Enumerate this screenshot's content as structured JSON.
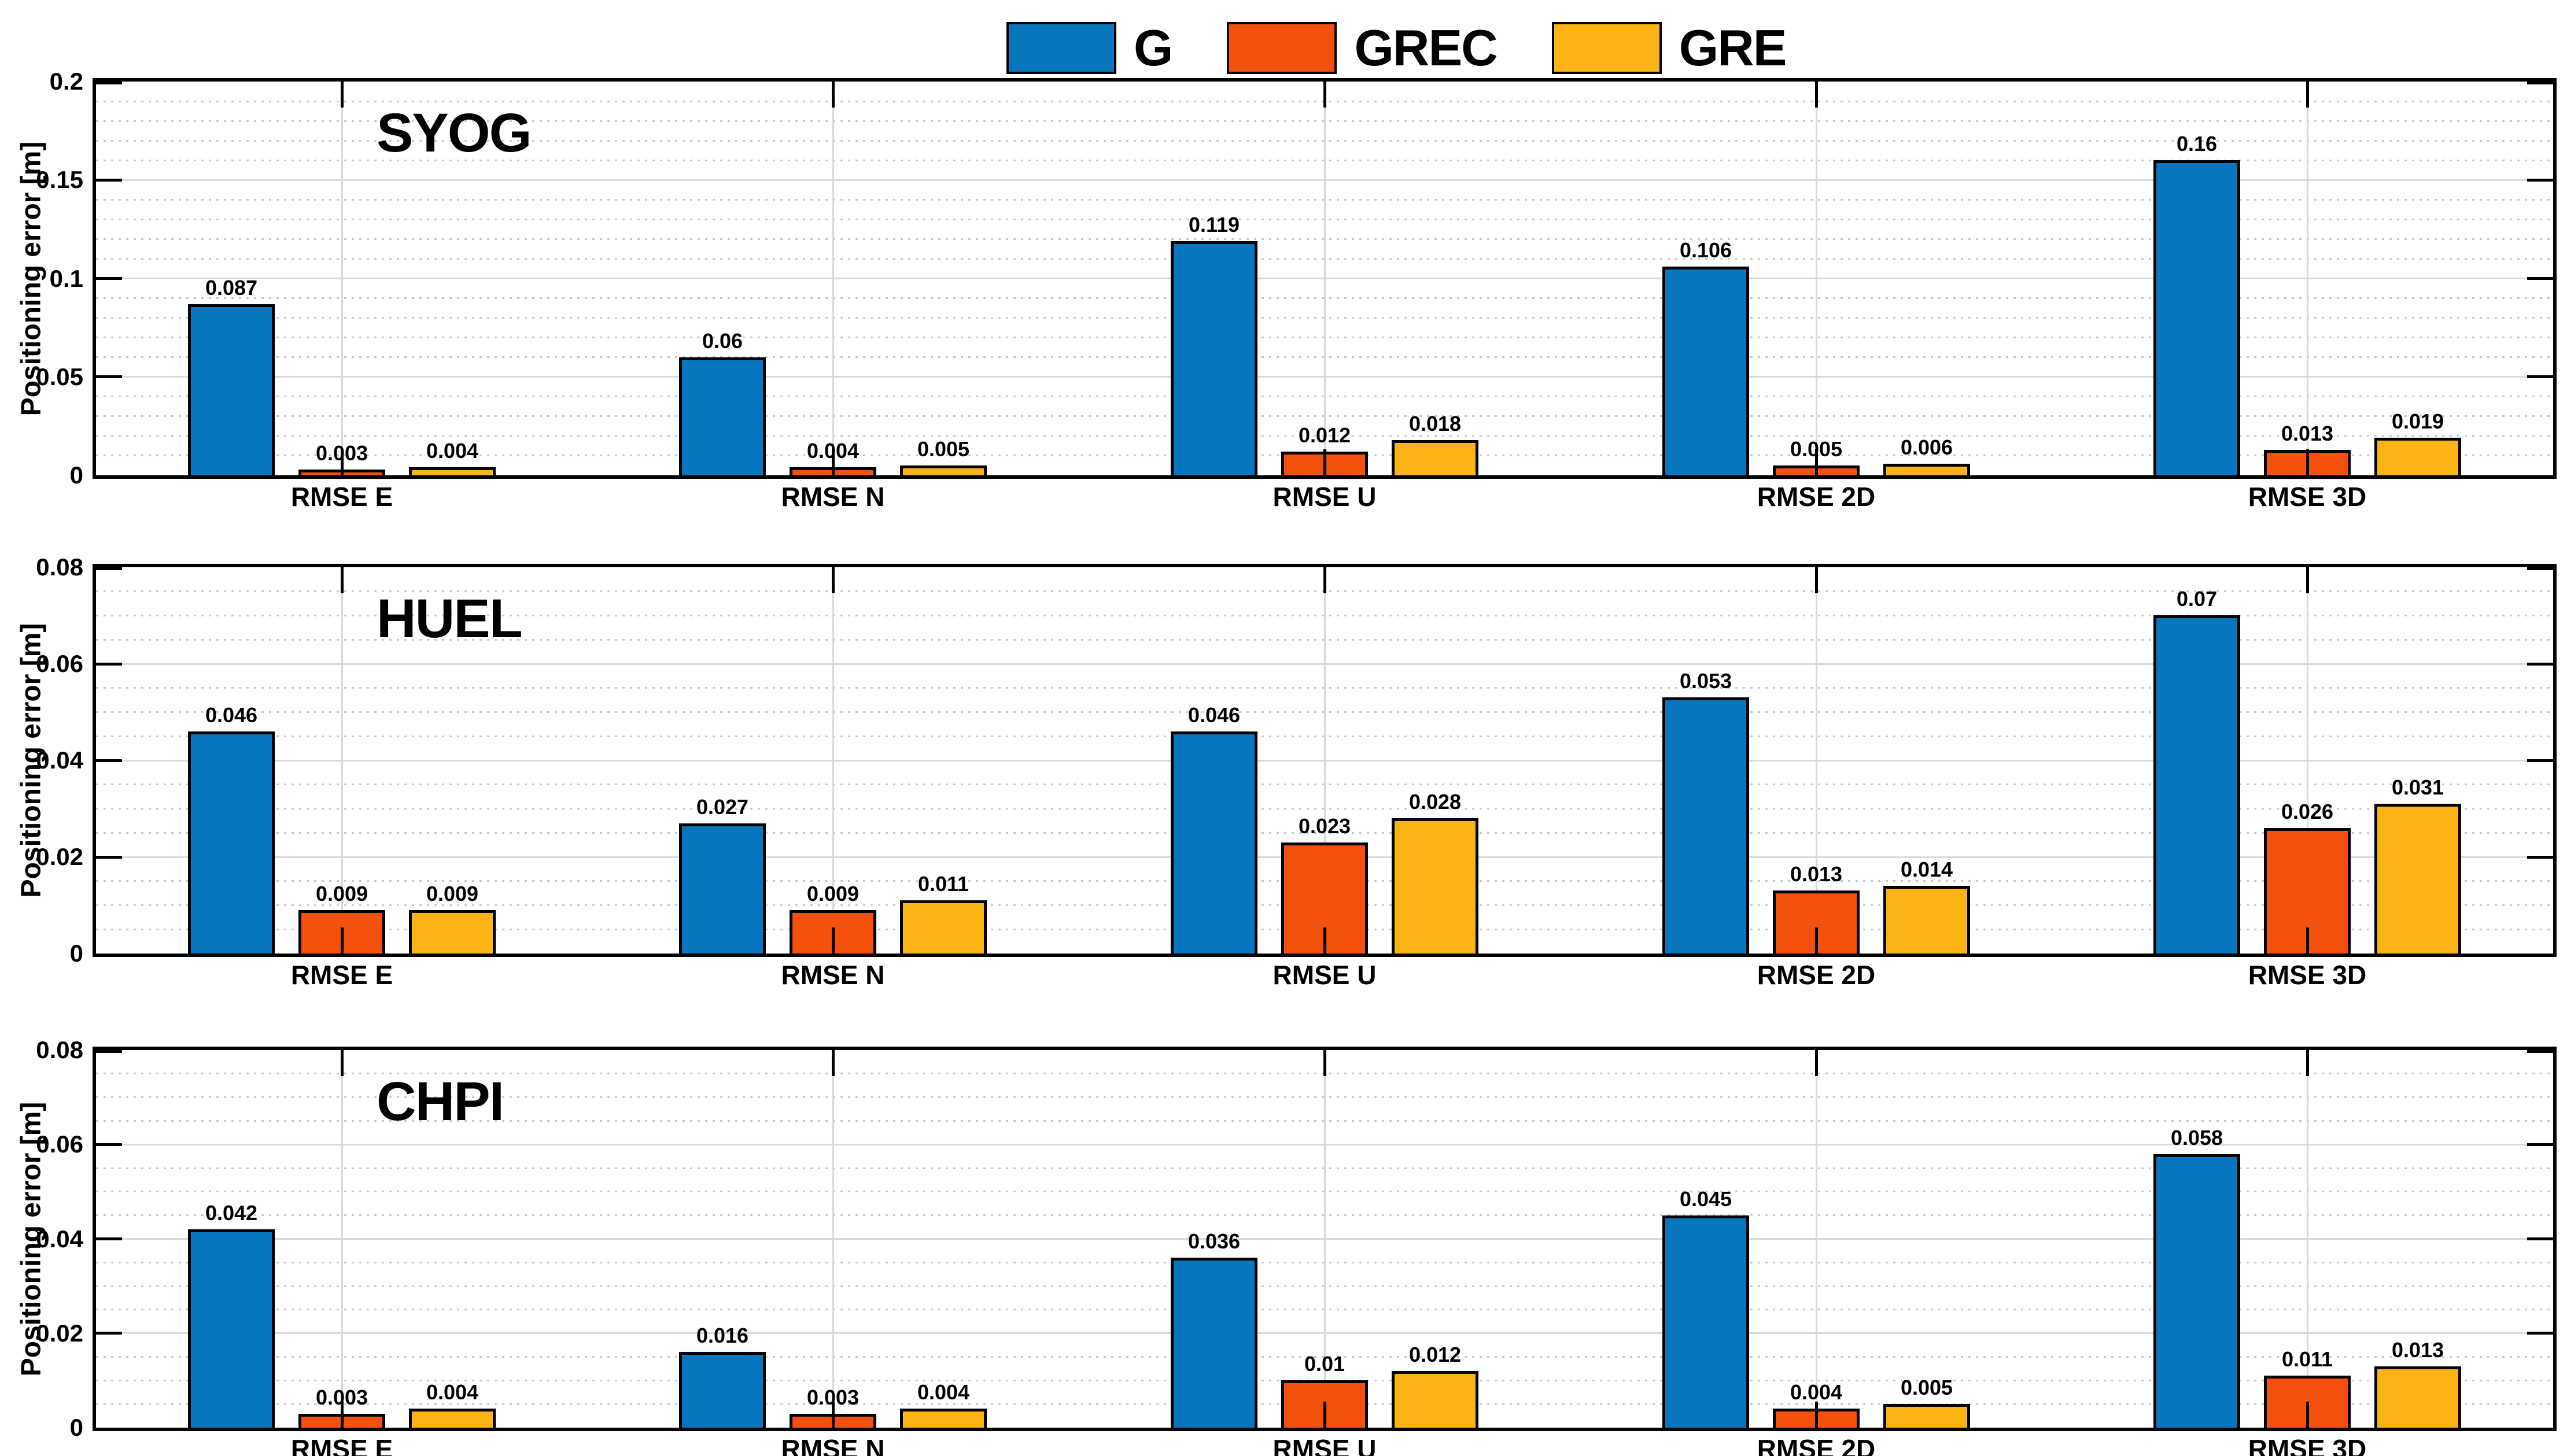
{
  "legend": {
    "items": [
      {
        "label": "G",
        "color": "#0776BE"
      },
      {
        "label": "GREC",
        "color": "#F4500E"
      },
      {
        "label": "GRE",
        "color": "#FCB414"
      }
    ]
  },
  "chart_data": {
    "type": "bar",
    "categories": [
      "RMSE E",
      "RMSE N",
      "RMSE U",
      "RMSE 2D",
      "RMSE 3D"
    ],
    "series_names": [
      "G",
      "GREC",
      "GRE"
    ],
    "series_colors": {
      "G": "#0776BE",
      "GREC": "#F4500E",
      "GRE": "#FCB414"
    },
    "legend_position": "top-center",
    "grid": {
      "major_horizontal": "solid",
      "minor_horizontal": "dotted",
      "vertical_at_categories": "solid"
    },
    "panels": [
      {
        "title": "SYOG",
        "ylabel": "Positioning error [m]",
        "ylim": [
          0,
          0.2
        ],
        "ytick_labels": [
          "0",
          "0.05",
          "0.1",
          "0.15",
          "0.2"
        ],
        "minor_step": 0.01,
        "series": [
          {
            "name": "G",
            "values": [
              "0.087",
              "0.06",
              "0.119",
              "0.106",
              "0.16"
            ]
          },
          {
            "name": "GREC",
            "values": [
              "0.003",
              "0.004",
              "0.012",
              "0.005",
              "0.013"
            ]
          },
          {
            "name": "GRE",
            "values": [
              "0.004",
              "0.005",
              "0.018",
              "0.006",
              "0.019"
            ]
          }
        ]
      },
      {
        "title": "HUEL",
        "ylabel": "Positioning error [m]",
        "ylim": [
          0,
          0.08
        ],
        "ytick_labels": [
          "0",
          "0.02",
          "0.04",
          "0.06",
          "0.08"
        ],
        "minor_step": 0.005,
        "series": [
          {
            "name": "G",
            "values": [
              "0.046",
              "0.027",
              "0.046",
              "0.053",
              "0.07"
            ]
          },
          {
            "name": "GREC",
            "values": [
              "0.009",
              "0.009",
              "0.023",
              "0.013",
              "0.026"
            ]
          },
          {
            "name": "GRE",
            "values": [
              "0.009",
              "0.011",
              "0.028",
              "0.014",
              "0.031"
            ]
          }
        ]
      },
      {
        "title": "CHPI",
        "ylabel": "Positioning error [m]",
        "ylim": [
          0,
          0.08
        ],
        "ytick_labels": [
          "0",
          "0.02",
          "0.04",
          "0.06",
          "0.08"
        ],
        "minor_step": 0.005,
        "series": [
          {
            "name": "G",
            "values": [
              "0.042",
              "0.016",
              "0.036",
              "0.045",
              "0.058"
            ]
          },
          {
            "name": "GREC",
            "values": [
              "0.003",
              "0.003",
              "0.01",
              "0.004",
              "0.011"
            ]
          },
          {
            "name": "GRE",
            "values": [
              "0.004",
              "0.004",
              "0.012",
              "0.005",
              "0.013"
            ]
          }
        ]
      }
    ]
  }
}
